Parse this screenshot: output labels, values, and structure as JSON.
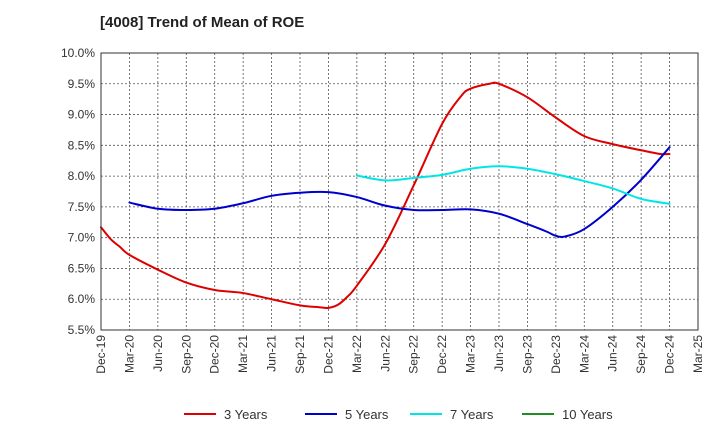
{
  "chart_data": {
    "type": "line",
    "title": "[4008]  Trend of Mean of ROE",
    "xlabel": "",
    "ylabel": "",
    "x_ticks": [
      "Dec-19",
      "Mar-20",
      "Jun-20",
      "Sep-20",
      "Dec-20",
      "Mar-21",
      "Jun-21",
      "Sep-21",
      "Dec-21",
      "Mar-22",
      "Jun-22",
      "Sep-22",
      "Dec-22",
      "Mar-23",
      "Jun-23",
      "Sep-23",
      "Dec-23",
      "Mar-24",
      "Jun-24",
      "Sep-24",
      "Dec-24",
      "Mar-25"
    ],
    "y_ticks": [
      "10.0%",
      "9.5%",
      "9.0%",
      "8.5%",
      "8.0%",
      "7.5%",
      "7.0%",
      "6.5%",
      "6.0%",
      "5.5%"
    ],
    "ylim": [
      5.5,
      10.0
    ],
    "grid": true,
    "legend_position": "bottom",
    "series": [
      {
        "name": "3 Years",
        "color": "#dd0000",
        "x": [
          "Dec-19",
          "Jan-20",
          "Feb-20",
          "Mar-20",
          "Jun-20",
          "Sep-20",
          "Dec-20",
          "Mar-21",
          "Jun-21",
          "Sep-21",
          "Nov-21",
          "Dec-21",
          "Jan-22",
          "Feb-22",
          "Mar-22",
          "Jun-22",
          "Sep-22",
          "Dec-22",
          "Feb-23",
          "Mar-23",
          "May-23",
          "Jun-23",
          "Sep-23",
          "Dec-23",
          "Mar-24",
          "Jun-24",
          "Sep-24",
          "Nov-24",
          "Dec-24"
        ],
        "values": [
          7.17,
          6.98,
          6.85,
          6.72,
          6.48,
          6.27,
          6.15,
          6.1,
          6.0,
          5.9,
          5.87,
          5.86,
          5.91,
          6.04,
          6.22,
          6.9,
          7.85,
          8.85,
          9.3,
          9.42,
          9.5,
          9.5,
          9.28,
          8.95,
          8.65,
          8.52,
          8.42,
          8.36,
          8.36
        ]
      },
      {
        "name": "5 Years",
        "color": "#0000cc",
        "x": [
          "Mar-20",
          "Jun-20",
          "Sep-20",
          "Dec-20",
          "Mar-21",
          "Jun-21",
          "Sep-21",
          "Dec-21",
          "Mar-22",
          "Jun-22",
          "Sep-22",
          "Dec-22",
          "Mar-23",
          "Jun-23",
          "Sep-23",
          "Nov-23",
          "Dec-23",
          "Jan-24",
          "Mar-24",
          "Jun-24",
          "Sep-24",
          "Dec-24"
        ],
        "values": [
          7.57,
          7.47,
          7.45,
          7.47,
          7.56,
          7.68,
          7.73,
          7.74,
          7.66,
          7.52,
          7.45,
          7.45,
          7.46,
          7.39,
          7.22,
          7.1,
          7.03,
          7.02,
          7.14,
          7.5,
          7.94,
          8.47
        ]
      },
      {
        "name": "7 Years",
        "color": "#00e5e5",
        "x": [
          "Mar-22",
          "Jun-22",
          "Sep-22",
          "Dec-22",
          "Mar-23",
          "Jun-23",
          "Sep-23",
          "Dec-23",
          "Mar-24",
          "Jun-24",
          "Sep-24",
          "Dec-24"
        ],
        "values": [
          8.01,
          7.93,
          7.97,
          8.02,
          8.12,
          8.16,
          8.12,
          8.03,
          7.92,
          7.8,
          7.63,
          7.55
        ]
      },
      {
        "name": "10 Years",
        "color": "#228b22",
        "x": [],
        "values": []
      }
    ]
  }
}
